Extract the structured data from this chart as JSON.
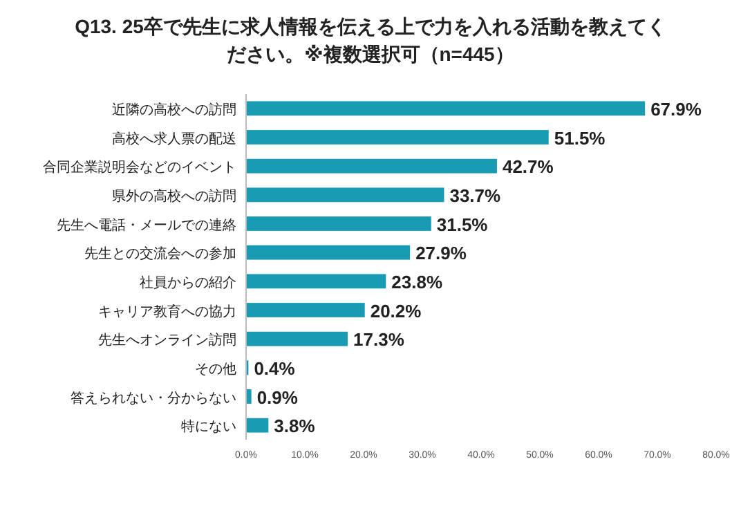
{
  "chart_data": {
    "type": "bar",
    "orientation": "horizontal",
    "title": "Q13. 25卒で先生に求人情報を伝える上で力を入れる活動を教えてください。※複数選択可（n=445）",
    "categories": [
      "近隣の高校への訪問",
      "高校へ求人票の配送",
      "合同企業説明会などのイベント",
      "県外の高校への訪問",
      "先生へ電話・メールでの連絡",
      "先生との交流会への参加",
      "社員からの紹介",
      "キャリア教育への協力",
      "先生へオンライン訪問",
      "その他",
      "答えられない・分からない",
      "特にない"
    ],
    "values": [
      67.9,
      51.5,
      42.7,
      33.7,
      31.5,
      27.9,
      23.8,
      20.2,
      17.3,
      0.4,
      0.9,
      3.8
    ],
    "value_labels": [
      "67.9%",
      "51.5%",
      "42.7%",
      "33.7%",
      "31.5%",
      "27.9%",
      "23.8%",
      "20.2%",
      "17.3%",
      "0.4%",
      "0.9%",
      "3.8%"
    ],
    "color": "#1a9bb4",
    "xlim": [
      0,
      80
    ],
    "xticks": [
      {
        "value": 0,
        "label": "0.0%"
      },
      {
        "value": 10,
        "label": "10.0%"
      },
      {
        "value": 20,
        "label": "20.0%"
      },
      {
        "value": 30,
        "label": "30.0%"
      },
      {
        "value": 40,
        "label": "40.0%"
      },
      {
        "value": 50,
        "label": "50.0%"
      },
      {
        "value": 60,
        "label": "60.0%"
      },
      {
        "value": 70,
        "label": "70.0%"
      },
      {
        "value": 80,
        "label": "80.0%"
      }
    ]
  }
}
